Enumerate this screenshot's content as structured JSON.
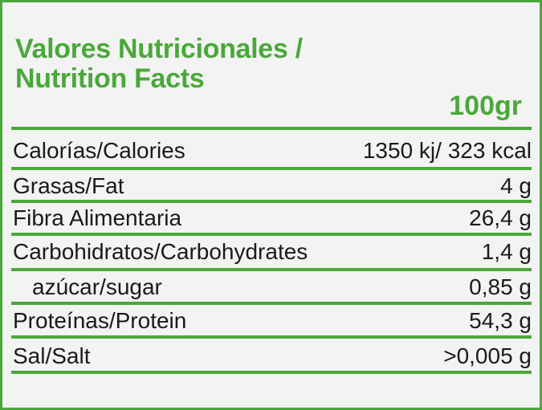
{
  "title_line1": "Valores Nutricionales /",
  "title_line2": "Nutrition Facts",
  "per_amount": "100gr",
  "accent_color": "#4aa83a",
  "rows": [
    {
      "label": "Calorías/Calories",
      "value": "1350 kj/ 323 kcal"
    },
    {
      "label": "Grasas/Fat",
      "value": "4 g"
    },
    {
      "label": "Fibra Alimentaria",
      "value": "26,4 g"
    },
    {
      "label": "Carbohidratos/Carbohydrates",
      "value": "1,4 g"
    },
    {
      "label": "azúcar/sugar",
      "value": "0,85 g"
    },
    {
      "label": "Proteínas/Protein",
      "value": "54,3 g"
    },
    {
      "label": "Sal/Salt",
      "value": ">0,005 g"
    }
  ]
}
